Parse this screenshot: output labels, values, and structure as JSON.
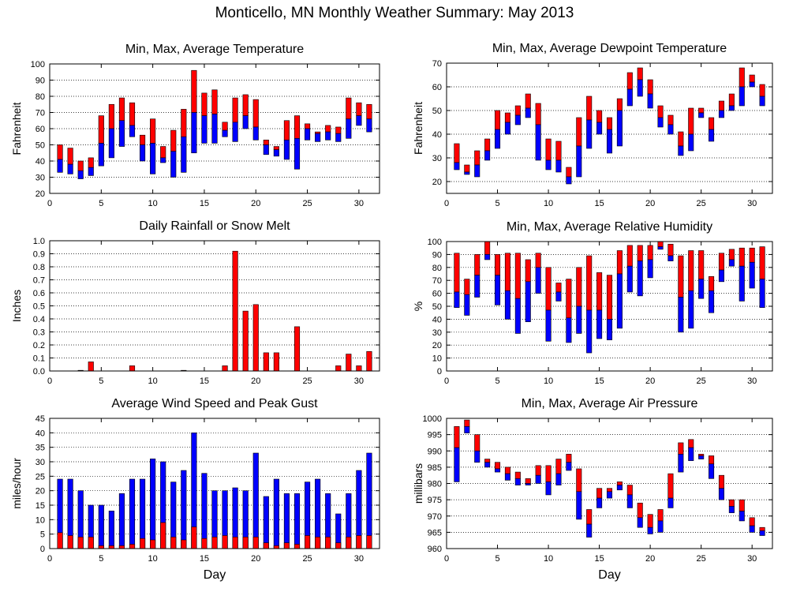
{
  "page": {
    "title": "Monticello, MN Monthly Weather Summary: May 2013"
  },
  "colors": {
    "max_series": "#ff0000",
    "min_series": "#0000ff",
    "grid": "#000000"
  },
  "chart_data": [
    {
      "id": "temperature",
      "type": "floating-bar",
      "title": "Min, Max, Average Temperature",
      "xlabel": "",
      "ylabel": "Fahrenheit",
      "xlim": [
        0,
        32
      ],
      "ylim": [
        20,
        100
      ],
      "xticks": [
        0,
        5,
        10,
        15,
        20,
        25,
        30
      ],
      "yticks": [
        20,
        30,
        40,
        50,
        60,
        70,
        80,
        90,
        100
      ],
      "ytick_labels": [
        "20",
        "30",
        "40",
        "50",
        "60",
        "70",
        "80",
        "90",
        "100"
      ],
      "grid": true,
      "x": [
        1,
        2,
        3,
        4,
        5,
        6,
        7,
        8,
        9,
        10,
        11,
        12,
        13,
        14,
        15,
        16,
        17,
        18,
        19,
        20,
        21,
        22,
        23,
        24,
        25,
        26,
        27,
        28,
        29,
        30,
        31
      ],
      "min": [
        33,
        32,
        29,
        31,
        37,
        42,
        49,
        55,
        40,
        32,
        39,
        30,
        33,
        45,
        51,
        51,
        55,
        52,
        60,
        53,
        44,
        43,
        41,
        35,
        53,
        52,
        53,
        52,
        54,
        62,
        58
      ],
      "avg": [
        41,
        38,
        34,
        36,
        51,
        60,
        65,
        62,
        50,
        51,
        42,
        46,
        55,
        70,
        68,
        69,
        59,
        64,
        68,
        61,
        50,
        47,
        53,
        54,
        60,
        57,
        58,
        57,
        66,
        68,
        66
      ],
      "max": [
        50,
        48,
        40,
        42,
        68,
        75,
        79,
        76,
        56,
        66,
        49,
        59,
        72,
        96,
        82,
        84,
        64,
        79,
        81,
        78,
        53,
        49,
        65,
        68,
        63,
        58,
        62,
        61,
        79,
        76,
        75
      ]
    },
    {
      "id": "dewpoint",
      "type": "floating-bar",
      "title": "Min, Max, Average Dewpoint Temperature",
      "xlabel": "",
      "ylabel": "Fahrenheit",
      "xlim": [
        0,
        32
      ],
      "ylim": [
        15,
        70
      ],
      "xticks": [
        0,
        5,
        10,
        15,
        20,
        25,
        30
      ],
      "yticks": [
        20,
        30,
        40,
        50,
        60,
        70
      ],
      "ytick_labels": [
        "20",
        "30",
        "40",
        "50",
        "60",
        "70"
      ],
      "grid": true,
      "x": [
        1,
        2,
        3,
        4,
        5,
        6,
        7,
        8,
        9,
        10,
        11,
        12,
        13,
        14,
        15,
        16,
        17,
        18,
        19,
        20,
        21,
        22,
        23,
        24,
        25,
        26,
        27,
        28,
        29,
        30,
        31
      ],
      "min": [
        25,
        23,
        22,
        29,
        34,
        40,
        44,
        47,
        29,
        25,
        24,
        19,
        22,
        34,
        40,
        32,
        35,
        52,
        56,
        51,
        43,
        40,
        31,
        33,
        47,
        37,
        47,
        50,
        52,
        60,
        52
      ],
      "avg": [
        28,
        24,
        27,
        33,
        42,
        45,
        48,
        51,
        44,
        29,
        29,
        22,
        35,
        46,
        45,
        42,
        50,
        59,
        63,
        57,
        47,
        44,
        35,
        40,
        49,
        42,
        50,
        52,
        60,
        62,
        56
      ],
      "max": [
        36,
        27,
        33,
        38,
        50,
        49,
        52,
        57,
        53,
        38,
        37,
        26,
        47,
        56,
        50,
        47,
        55,
        66,
        68,
        63,
        52,
        48,
        41,
        51,
        51,
        47,
        54,
        57,
        68,
        65,
        61
      ]
    },
    {
      "id": "rainfall",
      "type": "bar",
      "title": "Daily Rainfall or Snow Melt",
      "xlabel": "",
      "ylabel": "Inches",
      "xlim": [
        0,
        32
      ],
      "ylim": [
        0,
        1.0
      ],
      "xticks": [
        0,
        5,
        10,
        15,
        20,
        25,
        30
      ],
      "yticks": [
        0.0,
        0.1,
        0.2,
        0.3,
        0.4,
        0.5,
        0.6,
        0.7,
        0.8,
        0.9,
        1.0
      ],
      "ytick_labels": [
        "0.0",
        "0.1",
        "0.2",
        "0.3",
        "0.4",
        "0.5",
        "0.6",
        "0.7",
        "0.8",
        "0.9",
        "1.0"
      ],
      "grid": true,
      "x": [
        1,
        2,
        3,
        4,
        5,
        6,
        7,
        8,
        9,
        10,
        11,
        12,
        13,
        14,
        15,
        16,
        17,
        18,
        19,
        20,
        21,
        22,
        23,
        24,
        25,
        26,
        27,
        28,
        29,
        30,
        31
      ],
      "values": [
        0,
        0,
        0.005,
        0.07,
        0,
        0,
        0,
        0.04,
        0,
        0,
        0,
        0,
        0.005,
        0,
        0,
        0,
        0.04,
        0.92,
        0.46,
        0.51,
        0.14,
        0.14,
        0,
        0.34,
        0,
        0,
        0,
        0.04,
        0.13,
        0.04,
        0.15
      ]
    },
    {
      "id": "humidity",
      "type": "floating-bar",
      "title": "Min, Max, Average Relative Humidity",
      "xlabel": "",
      "ylabel": "%",
      "xlim": [
        0,
        32
      ],
      "ylim": [
        0,
        100
      ],
      "xticks": [
        0,
        5,
        10,
        15,
        20,
        25,
        30
      ],
      "yticks": [
        0,
        10,
        20,
        30,
        40,
        50,
        60,
        70,
        80,
        90,
        100
      ],
      "ytick_labels": [
        "0",
        "10",
        "20",
        "30",
        "40",
        "50",
        "60",
        "70",
        "80",
        "90",
        "100"
      ],
      "grid": true,
      "x": [
        1,
        2,
        3,
        4,
        5,
        6,
        7,
        8,
        9,
        10,
        11,
        12,
        13,
        14,
        15,
        16,
        17,
        18,
        19,
        20,
        21,
        22,
        23,
        24,
        25,
        26,
        27,
        28,
        29,
        30,
        31
      ],
      "min": [
        49,
        43,
        57,
        86,
        51,
        40,
        29,
        38,
        60,
        23,
        54,
        22,
        29,
        14,
        25,
        24,
        33,
        61,
        58,
        72,
        94,
        85,
        30,
        33,
        56,
        45,
        69,
        81,
        54,
        64,
        49
      ],
      "avg": [
        61,
        59,
        74,
        90,
        74,
        62,
        56,
        69,
        80,
        47,
        61,
        41,
        50,
        47,
        47,
        40,
        75,
        81,
        85,
        86,
        96,
        89,
        57,
        62,
        71,
        62,
        78,
        86,
        81,
        84,
        71
      ],
      "max": [
        91,
        71,
        90,
        100,
        90,
        91,
        91,
        86,
        91,
        80,
        68,
        71,
        80,
        89,
        76,
        74,
        93,
        97,
        97,
        97,
        100,
        98,
        89,
        93,
        93,
        73,
        91,
        94,
        95,
        95,
        96
      ]
    },
    {
      "id": "wind",
      "type": "bar",
      "title": "Average Wind Speed and Peak Gust",
      "xlabel": "Day",
      "ylabel": "miles/hour",
      "xlim": [
        0,
        32
      ],
      "ylim": [
        0,
        45
      ],
      "xticks": [
        0,
        5,
        10,
        15,
        20,
        25,
        30
      ],
      "yticks": [
        0,
        5,
        10,
        15,
        20,
        25,
        30,
        35,
        40,
        45
      ],
      "ytick_labels": [
        "0",
        "5",
        "10",
        "15",
        "20",
        "25",
        "30",
        "35",
        "40",
        "45"
      ],
      "grid": true,
      "x": [
        1,
        2,
        3,
        4,
        5,
        6,
        7,
        8,
        9,
        10,
        11,
        12,
        13,
        14,
        15,
        16,
        17,
        18,
        19,
        20,
        21,
        22,
        23,
        24,
        25,
        26,
        27,
        28,
        29,
        30,
        31
      ],
      "series": [
        {
          "role": "peak_gust",
          "values": [
            24,
            24,
            20,
            15,
            15,
            13,
            19,
            24,
            24,
            31,
            30,
            23,
            27,
            40,
            26,
            20,
            20,
            21,
            20,
            33,
            18,
            24,
            19,
            19,
            23,
            24,
            19,
            12,
            19,
            27,
            33
          ]
        },
        {
          "role": "avg_speed",
          "values": [
            5.5,
            4.5,
            4,
            4,
            1,
            1,
            1,
            1.5,
            3.5,
            3,
            9,
            4,
            3,
            7.5,
            3.5,
            4,
            4.5,
            4,
            4,
            4,
            2,
            1,
            2,
            1.5,
            4.5,
            4,
            4,
            2,
            4,
            4.5,
            4.5
          ]
        }
      ]
    },
    {
      "id": "pressure",
      "type": "floating-bar",
      "title": "Min, Max, Average Air Pressure",
      "xlabel": "Day",
      "ylabel": "millibars",
      "xlim": [
        0,
        32
      ],
      "ylim": [
        960,
        1000
      ],
      "xticks": [
        0,
        5,
        10,
        15,
        20,
        25,
        30
      ],
      "yticks": [
        960,
        965,
        970,
        975,
        980,
        985,
        990,
        995,
        1000
      ],
      "ytick_labels": [
        "960",
        "965",
        "970",
        "975",
        "980",
        "985",
        "990",
        "995",
        "1000"
      ],
      "grid": true,
      "x": [
        1,
        2,
        3,
        4,
        5,
        6,
        7,
        8,
        9,
        10,
        11,
        12,
        13,
        14,
        15,
        16,
        17,
        18,
        19,
        20,
        21,
        22,
        23,
        24,
        25,
        26,
        27,
        28,
        29,
        30,
        31
      ],
      "min": [
        980.5,
        995.5,
        986.5,
        985,
        983.5,
        981,
        979.5,
        979.5,
        980,
        976.5,
        979.5,
        984,
        969,
        963.5,
        972.5,
        975.5,
        978,
        972.5,
        966.5,
        964.5,
        965,
        972.5,
        983.5,
        987,
        987.5,
        981.5,
        975,
        971,
        968.5,
        965,
        964
      ],
      "avg": [
        991,
        997.5,
        990,
        986.5,
        984.5,
        983,
        981.5,
        980,
        982.5,
        980.5,
        983,
        986.5,
        977.5,
        967.5,
        975.5,
        977.5,
        979.5,
        976.5,
        969.5,
        966.5,
        968.5,
        975.5,
        989,
        991,
        988.5,
        986,
        978.5,
        973,
        971.5,
        967,
        965.5
      ],
      "max": [
        997.5,
        999.5,
        995,
        987.5,
        986.5,
        985,
        983.5,
        981.5,
        985.5,
        985.5,
        987.5,
        989,
        984.5,
        972,
        978.5,
        978.5,
        980.5,
        979.5,
        974,
        970.5,
        972,
        983,
        992.5,
        993.5,
        989,
        988.5,
        982.5,
        975,
        975,
        969.5,
        966.5
      ]
    }
  ]
}
